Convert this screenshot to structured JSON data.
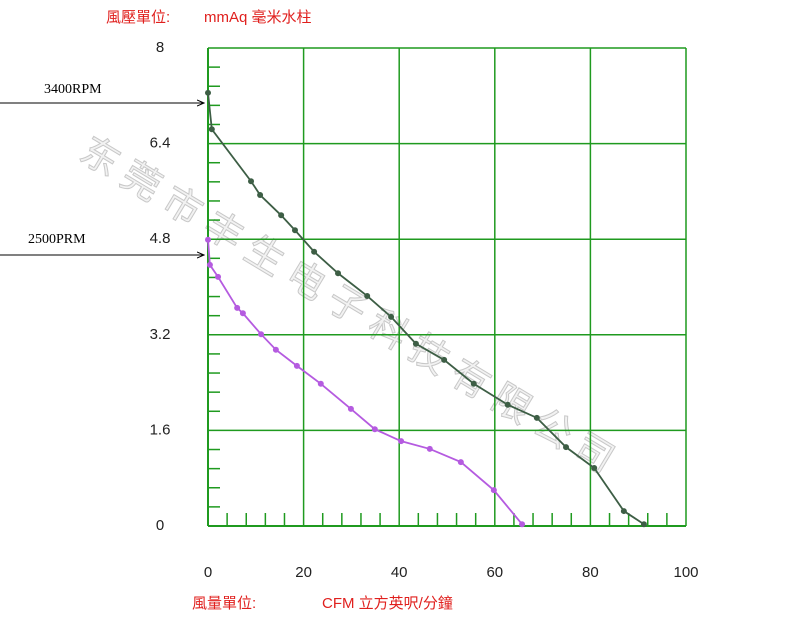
{
  "chart_data": {
    "type": "line",
    "y_axis_label": "風壓單位:",
    "y_unit": "mmAq 毫米水柱",
    "x_axis_label": "風量單位:",
    "x_unit": "CFM 立方英呎/分鐘",
    "watermark": "东莞市丰生电子科技有限公司",
    "xlim": [
      0,
      100
    ],
    "xticks": [
      0,
      20,
      40,
      60,
      80,
      100
    ],
    "ylim": [
      0,
      8
    ],
    "yticks": [
      0,
      1.6,
      3.2,
      4.8,
      6.4,
      8
    ],
    "grid": true,
    "grid_color": "#1f9a1f",
    "series": [
      {
        "name": "3400RPM",
        "color": "#3d5e45",
        "x": [
          0,
          0.8,
          9.0,
          10.9,
          15.3,
          18.2,
          22.2,
          27.2,
          33.3,
          38.3,
          43.5,
          49.4,
          55.6,
          62.7,
          68.8,
          74.9,
          80.8,
          87.0,
          91.2
        ],
        "values": [
          7.25,
          6.64,
          5.77,
          5.54,
          5.2,
          4.95,
          4.59,
          4.23,
          3.85,
          3.5,
          3.05,
          2.78,
          2.38,
          2.03,
          1.81,
          1.32,
          0.97,
          0.25,
          0.03
        ]
      },
      {
        "name": "2500PRM",
        "color": "#b55be0",
        "x": [
          0,
          0.4,
          2.1,
          6.1,
          7.3,
          11.1,
          14.2,
          18.6,
          23.6,
          29.9,
          34.9,
          40.4,
          46.4,
          52.9,
          59.8,
          65.7
        ],
        "values": [
          4.79,
          4.37,
          4.17,
          3.65,
          3.56,
          3.21,
          2.95,
          2.68,
          2.38,
          1.96,
          1.62,
          1.42,
          1.29,
          1.07,
          0.6,
          0.03
        ]
      }
    ]
  }
}
